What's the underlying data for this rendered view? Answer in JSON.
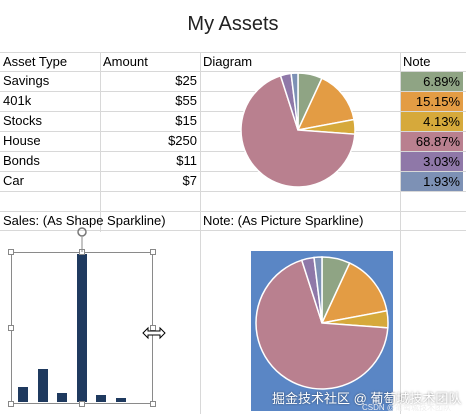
{
  "title": "My Assets",
  "headers": {
    "asset_type": "Asset Type",
    "amount": "Amount",
    "diagram": "Diagram",
    "note": "Note"
  },
  "rows": [
    {
      "asset": "Savings",
      "amount": "$25",
      "note": "6.89%",
      "color": "#8fa484"
    },
    {
      "asset": "401k",
      "amount": "$55",
      "note": "15.15%",
      "color": "#e39c44"
    },
    {
      "asset": "Stocks",
      "amount": "$15",
      "note": "4.13%",
      "color": "#d6a93b"
    },
    {
      "asset": "House",
      "amount": "$250",
      "note": "68.87%",
      "color": "#b9808f"
    },
    {
      "asset": "Bonds",
      "amount": "$11",
      "note": "3.03%",
      "color": "#8f78a8"
    },
    {
      "asset": "Car",
      "amount": "$7",
      "note": "1.93%",
      "color": "#7d91b5"
    }
  ],
  "labels": {
    "sales": "Sales: (As Shape Sparkline)",
    "note_picture": "Note: (As Picture Sparkline)"
  },
  "watermark": {
    "main": "掘金技术社区 @ 葡萄城技术团队",
    "sub": "CSDN @葡萄城技术团队"
  },
  "chart_data": [
    {
      "type": "pie",
      "categories": [
        "Savings",
        "401k",
        "Stocks",
        "House",
        "Bonds",
        "Car"
      ],
      "values": [
        25,
        55,
        15,
        250,
        11,
        7
      ],
      "colors": [
        "#8fa484",
        "#e39c44",
        "#d6a93b",
        "#b9808f",
        "#8f78a8",
        "#7d91b5"
      ]
    },
    {
      "type": "bar",
      "categories": [
        "Savings",
        "401k",
        "Stocks",
        "House",
        "Bonds",
        "Car"
      ],
      "values": [
        25,
        55,
        15,
        250,
        11,
        7
      ],
      "color": "#1f3a5f"
    },
    {
      "type": "pie",
      "categories": [
        "Savings",
        "401k",
        "Stocks",
        "House",
        "Bonds",
        "Car"
      ],
      "values": [
        6.89,
        15.15,
        4.13,
        68.87,
        3.03,
        1.93
      ],
      "colors": [
        "#8fa484",
        "#e39c44",
        "#d6a93b",
        "#b9808f",
        "#8f78a8",
        "#7d91b5"
      ],
      "background": "#5a86c5"
    }
  ]
}
